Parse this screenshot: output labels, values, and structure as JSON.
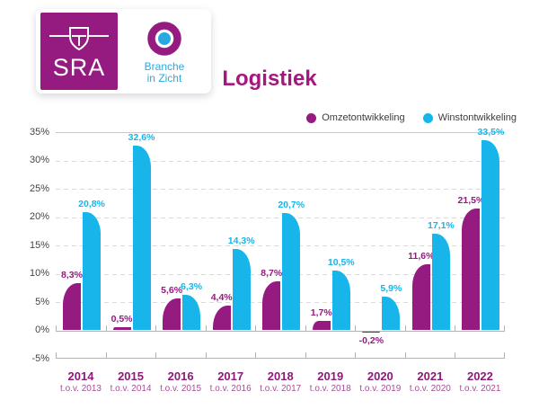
{
  "logo_card": {
    "sra_label": "SRA",
    "biz_line1": "Branche",
    "biz_line2": "in Zicht"
  },
  "title": "Logistiek",
  "legend": [
    {
      "label": "Omzetontwikkeling",
      "color": "#951b81"
    },
    {
      "label": "Winstontwikkeling",
      "color": "#17b5e9"
    }
  ],
  "colors": {
    "purple": "#951b81",
    "cyan": "#17b5e9",
    "title": "#a5167f",
    "gridline": "#dadada",
    "axis": "#b3b3b3"
  },
  "chart_data": {
    "type": "bar",
    "title": "Logistiek",
    "ylim": [
      -5,
      35
    ],
    "grid": "horizontal dashed",
    "legend_position": "top-right",
    "y_ticks": [
      {
        "value": 35,
        "label": "35%"
      },
      {
        "value": 30,
        "label": "30%"
      },
      {
        "value": 25,
        "label": "25%"
      },
      {
        "value": 20,
        "label": "20%"
      },
      {
        "value": 15,
        "label": "15%"
      },
      {
        "value": 10,
        "label": "10%"
      },
      {
        "value": 5,
        "label": "5%"
      },
      {
        "value": 0,
        "label": "0%"
      },
      {
        "value": -5,
        "label": "-5%"
      }
    ],
    "categories": [
      {
        "year": "2014",
        "sub": "t.o.v. 2013"
      },
      {
        "year": "2015",
        "sub": "t.o.v. 2014"
      },
      {
        "year": "2016",
        "sub": "t.o.v. 2015"
      },
      {
        "year": "2017",
        "sub": "t.o.v. 2016"
      },
      {
        "year": "2018",
        "sub": "t.o.v. 2017"
      },
      {
        "year": "2019",
        "sub": "t.o.v. 2018"
      },
      {
        "year": "2020",
        "sub": "t.o.v. 2019"
      },
      {
        "year": "2021",
        "sub": "t.o.v. 2020"
      },
      {
        "year": "2022",
        "sub": "t.o.v. 2021"
      }
    ],
    "series": [
      {
        "name": "Omzetontwikkeling",
        "color": "#951b81",
        "values": [
          8.3,
          0.5,
          5.6,
          4.4,
          8.7,
          1.7,
          -0.2,
          11.6,
          21.5
        ],
        "labels": [
          "8,3%",
          "0,5%",
          "5,6%",
          "4,4%",
          "8,7%",
          "1,7%",
          "-0,2%",
          "11,6%",
          "21,5%"
        ]
      },
      {
        "name": "Winstontwikkeling",
        "color": "#17b5e9",
        "values": [
          20.8,
          32.6,
          6.3,
          14.3,
          20.7,
          10.5,
          5.9,
          17.1,
          33.5
        ],
        "labels": [
          "20,8%",
          "32,6%",
          "6,3%",
          "14,3%",
          "20,7%",
          "10,5%",
          "5,9%",
          "17,1%",
          "33,5%"
        ]
      }
    ]
  }
}
